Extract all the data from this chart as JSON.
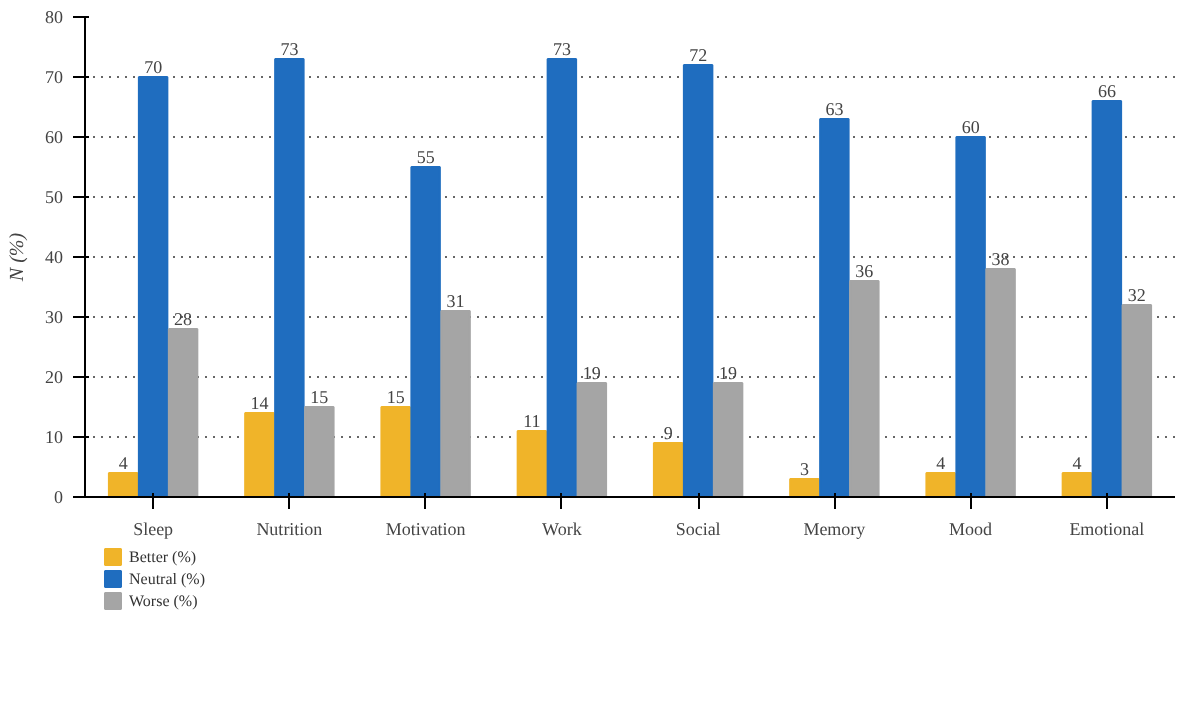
{
  "chart_data": {
    "type": "bar",
    "ylabel": "N (%)",
    "categories": [
      "Sleep",
      "Nutrition",
      "Motivation",
      "Work",
      "Social",
      "Memory",
      "Mood",
      "Emotional"
    ],
    "series": [
      {
        "name": "Better (%)",
        "color": "#f0b429",
        "values": [
          4,
          14,
          15,
          11,
          9,
          3,
          4,
          4
        ]
      },
      {
        "name": "Neutral (%)",
        "color": "#1f6dbf",
        "values": [
          70,
          73,
          55,
          73,
          72,
          63,
          60,
          66
        ]
      },
      {
        "name": "Worse (%)",
        "color": "#a5a5a5",
        "values": [
          28,
          15,
          31,
          19,
          19,
          36,
          38,
          32
        ]
      }
    ],
    "ylim": [
      0,
      80
    ],
    "yticks": [
      0,
      10,
      20,
      30,
      40,
      50,
      60,
      70,
      80
    ],
    "grid": "y",
    "data_labels": true,
    "legend": "bottom left"
  }
}
